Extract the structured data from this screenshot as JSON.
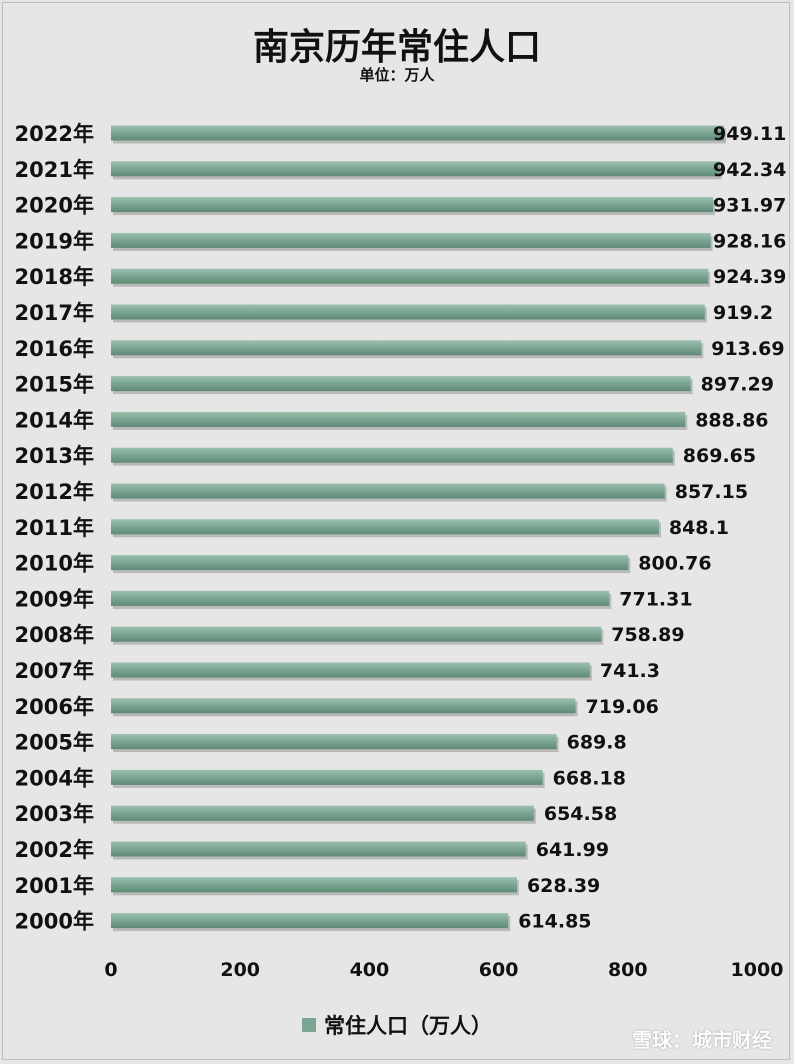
{
  "chart_data": {
    "type": "bar",
    "orientation": "horizontal",
    "title": "南京历年常住人口",
    "subtitle": "单位：万人",
    "categories": [
      "2022年",
      "2021年",
      "2020年",
      "2019年",
      "2018年",
      "2017年",
      "2016年",
      "2015年",
      "2014年",
      "2013年",
      "2012年",
      "2011年",
      "2010年",
      "2009年",
      "2008年",
      "2007年",
      "2006年",
      "2005年",
      "2004年",
      "2003年",
      "2002年",
      "2001年",
      "2000年"
    ],
    "series": [
      {
        "name": "常住人口（万人）",
        "values": [
          949.11,
          942.34,
          931.97,
          928.16,
          924.39,
          919.2,
          913.69,
          897.29,
          888.86,
          869.65,
          857.15,
          848.1,
          800.76,
          771.31,
          758.89,
          741.3,
          719.06,
          689.8,
          668.18,
          654.58,
          641.99,
          628.39,
          614.85
        ]
      }
    ],
    "data_labels": [
      "949.11",
      "942.34",
      "931.97",
      "928.16",
      "924.39",
      "919.2",
      "913.69",
      "897.29",
      "888.86",
      "869.65",
      "857.15",
      "848.1",
      "800.76",
      "771.31",
      "758.89",
      "741.3",
      "719.06",
      "689.8",
      "668.18",
      "654.58",
      "641.99",
      "628.39",
      "614.85"
    ],
    "xlim": [
      0,
      1000
    ],
    "x_ticks": [
      "0",
      "200",
      "400",
      "600",
      "800",
      "1000"
    ],
    "x_tick_values": [
      0,
      200,
      400,
      600,
      800,
      1000
    ],
    "grid": false,
    "legend": "bottom",
    "bar_color": "#7aa592"
  },
  "watermark": "雪球：城市财经"
}
